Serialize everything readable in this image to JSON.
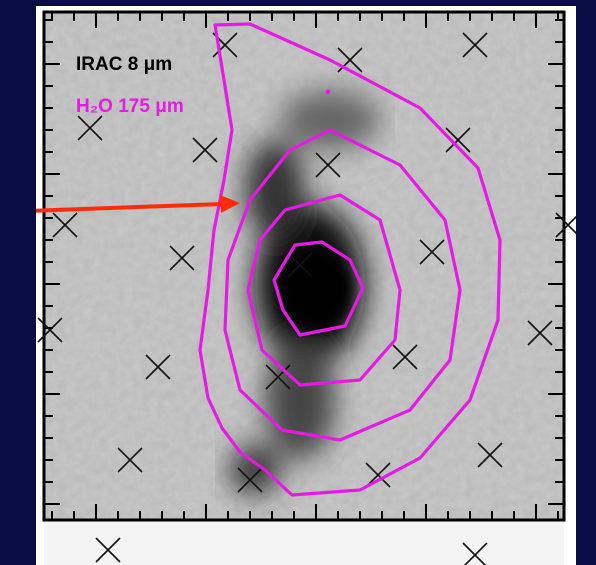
{
  "legend": {
    "line1": "IRAC 8 μm",
    "line2": "H₂O 175 μm"
  }
}
